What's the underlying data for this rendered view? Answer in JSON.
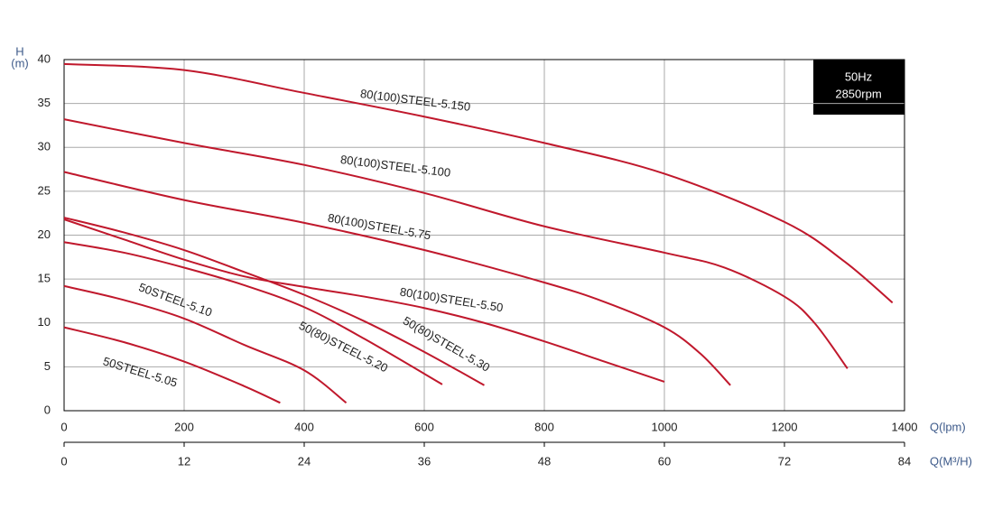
{
  "chart_data": {
    "type": "line",
    "y_label": "H",
    "y_unit": "(m)",
    "x_label": "Q(lpm)",
    "x2_label": "Q(M³/H)",
    "annotations": [
      "50Hz",
      "2850rpm"
    ],
    "xlim": [
      0,
      1400
    ],
    "xticks": [
      0,
      200,
      400,
      600,
      800,
      1000,
      1200,
      1400
    ],
    "x2lim": [
      0,
      84
    ],
    "x2ticks": [
      0,
      12,
      24,
      36,
      48,
      60,
      72,
      84
    ],
    "ylim": [
      0,
      40
    ],
    "yticks": [
      0,
      5,
      10,
      15,
      20,
      25,
      30,
      35,
      40
    ],
    "grid": true,
    "series": [
      {
        "name": "80(100)STEEL-5.150",
        "color": "#c0182c",
        "x": [
          0,
          200,
          400,
          600,
          800,
          1000,
          1200,
          1300,
          1380
        ],
        "values": [
          39.5,
          38.8,
          36.2,
          33.5,
          30.5,
          27,
          21.5,
          17,
          12.3
        ]
      },
      {
        "name": "80(100)STEEL-5.100",
        "color": "#c0182c",
        "x": [
          0,
          200,
          400,
          600,
          800,
          1000,
          1100,
          1200,
          1250,
          1305
        ],
        "values": [
          33.2,
          30.5,
          28,
          24.8,
          21,
          18,
          16.3,
          13,
          10,
          4.8
        ]
      },
      {
        "name": "80(100)STEEL-5.75",
        "color": "#c0182c",
        "x": [
          0,
          200,
          400,
          600,
          800,
          900,
          1000,
          1060,
          1110
        ],
        "values": [
          27.2,
          24,
          21.4,
          18.3,
          14.6,
          12.4,
          9.5,
          6.5,
          2.9
        ]
      },
      {
        "name": "80(100)STEEL-5.50",
        "color": "#c0182c",
        "x": [
          0,
          100,
          200,
          300,
          400,
          500,
          600,
          700,
          800,
          900,
          1000
        ],
        "values": [
          21.8,
          19.5,
          17.2,
          15.3,
          14.1,
          13,
          11.7,
          10,
          7.9,
          5.6,
          3.3
        ]
      },
      {
        "name": "50(80)STEEL-5.30",
        "color": "#c0182c",
        "x": [
          0,
          100,
          200,
          300,
          400,
          500,
          600,
          700
        ],
        "values": [
          22,
          20.3,
          18.3,
          15.8,
          13.2,
          10.2,
          6.7,
          2.9
        ]
      },
      {
        "name": "50(80)STEEL-5.20",
        "color": "#c0182c",
        "x": [
          0,
          100,
          200,
          300,
          400,
          500,
          630
        ],
        "values": [
          19.2,
          18,
          16.3,
          14.3,
          11.8,
          8.2,
          3
        ]
      },
      {
        "name": "50STEEL-5.10",
        "color": "#c0182c",
        "x": [
          0,
          100,
          200,
          300,
          400,
          470
        ],
        "values": [
          14.2,
          12.6,
          10.5,
          7.5,
          4.6,
          0.9
        ]
      },
      {
        "name": "50STEEL-5.05",
        "color": "#c0182c",
        "x": [
          0,
          100,
          200,
          300,
          360
        ],
        "values": [
          9.5,
          7.8,
          5.6,
          2.8,
          0.9
        ]
      }
    ]
  }
}
